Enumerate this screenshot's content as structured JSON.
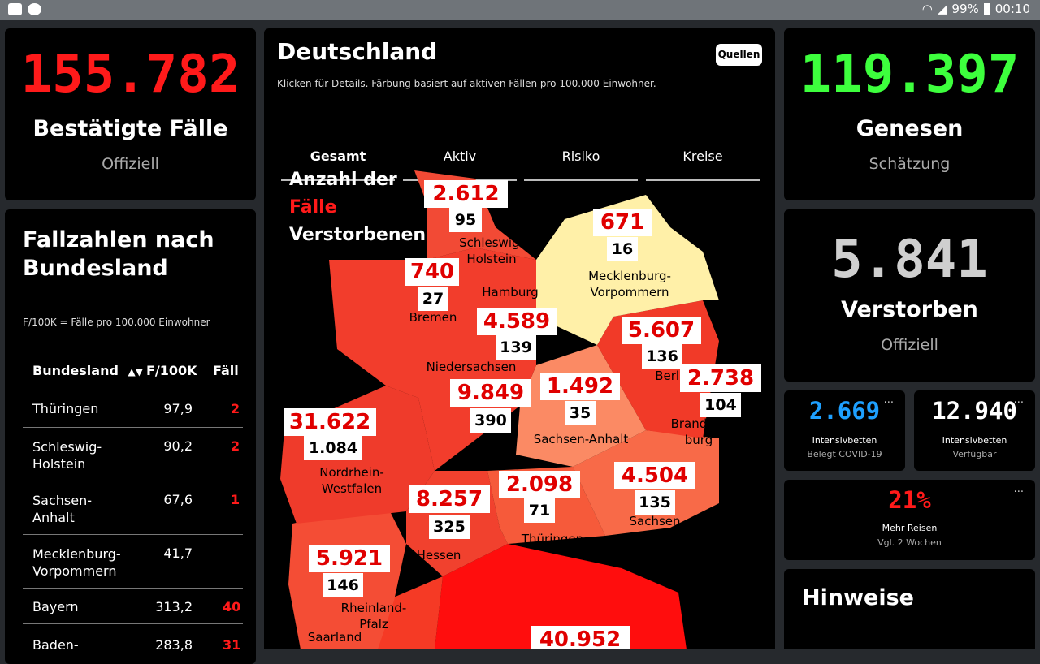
{
  "statusbar": {
    "battery": "99%",
    "time": "00:10"
  },
  "left_stat": {
    "value": "155.782",
    "label": "Bestätigte Fälle",
    "sub": "Offiziell"
  },
  "table_card": {
    "title_line1": "Fallzahlen nach",
    "title_line2": "Bundesland",
    "note": "F/100K = Fälle pro 100.000 Einwohner",
    "headers": [
      "Bundesland",
      "F/100K",
      "Fälle"
    ],
    "rows": [
      {
        "name": "Thüringen",
        "f100k": "97,9",
        "faelle": "2"
      },
      {
        "name": "Schleswig-Holstein",
        "f100k": "90,2",
        "faelle": "2"
      },
      {
        "name": "Sachsen-Anhalt",
        "f100k": "67,6",
        "faelle": "1"
      },
      {
        "name": "Mecklenburg-Vorpommern",
        "f100k": "41,7",
        "faelle": ""
      },
      {
        "name": "Bayern",
        "f100k": "313,2",
        "faelle": "40"
      },
      {
        "name": "Baden-",
        "f100k": "283,8",
        "faelle": "31"
      }
    ]
  },
  "map_card": {
    "title": "Deutschland",
    "subtitle": "Klicken für Details. Färbung basiert auf aktiven Fällen pro 100.000 Einwohner.",
    "sources_button": "Quellen",
    "tabs": [
      "Gesamt",
      "Aktiv",
      "Risiko",
      "Kreise"
    ],
    "legend": {
      "line1": "Anzahl der",
      "line2": "Fälle",
      "line3": "Verstorbenen"
    },
    "states": [
      {
        "name": "Schleswig-Holstein",
        "cases": "2.612",
        "deaths": "95"
      },
      {
        "name": "Mecklenburg-Vorpommern",
        "cases": "671",
        "deaths": "16"
      },
      {
        "name": "Hamburg",
        "cases": "",
        "deaths": ""
      },
      {
        "name": "Bremen",
        "cases": "740",
        "deaths": "27"
      },
      {
        "name": "Niedersachsen",
        "cases": "4.589",
        "deaths": "139"
      },
      {
        "name": "Berlin",
        "cases": "5.607",
        "deaths": "136"
      },
      {
        "name": "Brandenburg",
        "cases": "2.738",
        "deaths": "104"
      },
      {
        "name": "Sachsen-Anhalt",
        "cases": "1.492",
        "deaths": "35"
      },
      {
        "name": "Nordrhein-Westfalen",
        "cases": "31.622",
        "deaths": "1.084"
      },
      {
        "name": "Hessen",
        "cases": "8.257",
        "deaths": "325"
      },
      {
        "name": "Thüringen",
        "cases": "2.098",
        "deaths": "71"
      },
      {
        "name": "Sachsen",
        "cases": "4.504",
        "deaths": "135"
      },
      {
        "name": "Rheinland-Pfalz",
        "cases": "5.921",
        "deaths": "146"
      },
      {
        "name": "Saarland",
        "cases": "",
        "deaths": ""
      },
      {
        "name": "Bayern",
        "cases": "40.952",
        "deaths": ""
      },
      {
        "name": "Niedersachsen-center",
        "cases": "9.849",
        "deaths": "390"
      }
    ]
  },
  "right_stat1": {
    "value": "119.397",
    "label": "Genesen",
    "sub": "Schätzung"
  },
  "right_stat2": {
    "value": "5.841",
    "label": "Verstorben",
    "sub": "Offiziell"
  },
  "icu1": {
    "value": "2.669",
    "label": "Intensivbetten",
    "sub": "Belegt COVID-19",
    "menu": "..."
  },
  "icu2": {
    "value": "12.940",
    "label": "Intensivbetten",
    "sub": "Verfügbar",
    "menu": "..."
  },
  "travel": {
    "value": "21%",
    "label": "Mehr Reisen",
    "sub": "Vgl. 2 Wochen",
    "menu": "..."
  },
  "notes": {
    "title": "Hinweise"
  },
  "colors": {
    "red": "#ff1a1a",
    "green": "#3dff3d",
    "gray": "#cfcfcf",
    "blue": "#1ea0ff"
  }
}
